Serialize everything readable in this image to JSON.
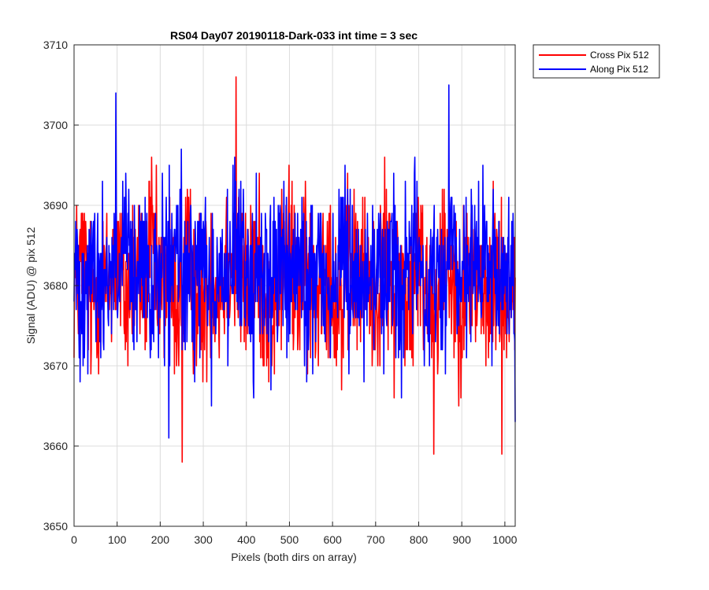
{
  "chart_data": {
    "type": "line",
    "title": "RS04 Day07 20190118-Dark-033 int time = 3 sec",
    "xlabel": "Pixels (both dirs on array)",
    "ylabel": "Signal (ADU) @ pix 512",
    "xlim": [
      0,
      1024
    ],
    "ylim": [
      3650,
      3710
    ],
    "xticks": [
      0,
      100,
      200,
      300,
      400,
      500,
      600,
      700,
      800,
      900,
      1000
    ],
    "yticks": [
      3650,
      3660,
      3670,
      3680,
      3690,
      3700,
      3710
    ],
    "grid": true,
    "legend_position": "outside-top-right",
    "noise_summary": {
      "points_per_series": 1024,
      "approx_mean": 3681,
      "approx_min": 3658,
      "approx_max": 3706
    },
    "series": [
      {
        "name": "Cross Pix 512",
        "color": "#ff0000",
        "extremes": [
          {
            "x": 251,
            "y": 3658
          },
          {
            "x": 376,
            "y": 3706
          },
          {
            "x": 835,
            "y": 3659
          },
          {
            "x": 993,
            "y": 3659
          }
        ],
        "sample_x": [
          0,
          20,
          40,
          60,
          80,
          100,
          120,
          140,
          160,
          180,
          200,
          220,
          240,
          260,
          280,
          300,
          320,
          340,
          360,
          380,
          400,
          420,
          440,
          460,
          480,
          500,
          520,
          540,
          560,
          580,
          600,
          620,
          640,
          660,
          680,
          700,
          720,
          740,
          760,
          780,
          800,
          820,
          840,
          860,
          880,
          900,
          920,
          940,
          960,
          980,
          1000,
          1020
        ],
        "sample_y": [
          3679,
          3688,
          3670,
          3683,
          3676,
          3690,
          3672,
          3685,
          3679,
          3694,
          3674,
          3683,
          3671,
          3687,
          3679,
          3668,
          3686,
          3675,
          3691,
          3683,
          3673,
          3688,
          3678,
          3666,
          3684,
          3690,
          3675,
          3681,
          3672,
          3693,
          3679,
          3669,
          3687,
          3678,
          3684,
          3671,
          3689,
          3676,
          3682,
          3668,
          3687,
          3679,
          3674,
          3690,
          3681,
          3672,
          3685,
          3678,
          3667,
          3688,
          3674,
          3682
        ]
      },
      {
        "name": "Along Pix 512",
        "color": "#0000ff",
        "extremes": [
          {
            "x": 97,
            "y": 3704
          },
          {
            "x": 220,
            "y": 3661
          },
          {
            "x": 870,
            "y": 3705
          },
          {
            "x": 1024,
            "y": 3663
          }
        ],
        "sample_x": [
          0,
          20,
          40,
          60,
          80,
          100,
          120,
          140,
          160,
          180,
          200,
          220,
          240,
          260,
          280,
          300,
          320,
          340,
          360,
          380,
          400,
          420,
          440,
          460,
          480,
          500,
          520,
          540,
          560,
          580,
          600,
          620,
          640,
          660,
          680,
          700,
          720,
          740,
          760,
          780,
          800,
          820,
          840,
          860,
          880,
          900,
          920,
          940,
          960,
          980,
          1000,
          1020
        ],
        "sample_y": [
          3684,
          3678,
          3689,
          3675,
          3686,
          3681,
          3692,
          3677,
          3684,
          3671,
          3688,
          3680,
          3693,
          3676,
          3683,
          3690,
          3674,
          3686,
          3679,
          3692,
          3684,
          3675,
          3688,
          3680,
          3691,
          3677,
          3686,
          3673,
          3689,
          3681,
          3676,
          3692,
          3683,
          3688,
          3674,
          3686,
          3679,
          3691,
          3676,
          3684,
          3690,
          3672,
          3685,
          3679,
          3693,
          3676,
          3685,
          3681,
          3691,
          3674,
          3686,
          3680
        ]
      }
    ]
  }
}
